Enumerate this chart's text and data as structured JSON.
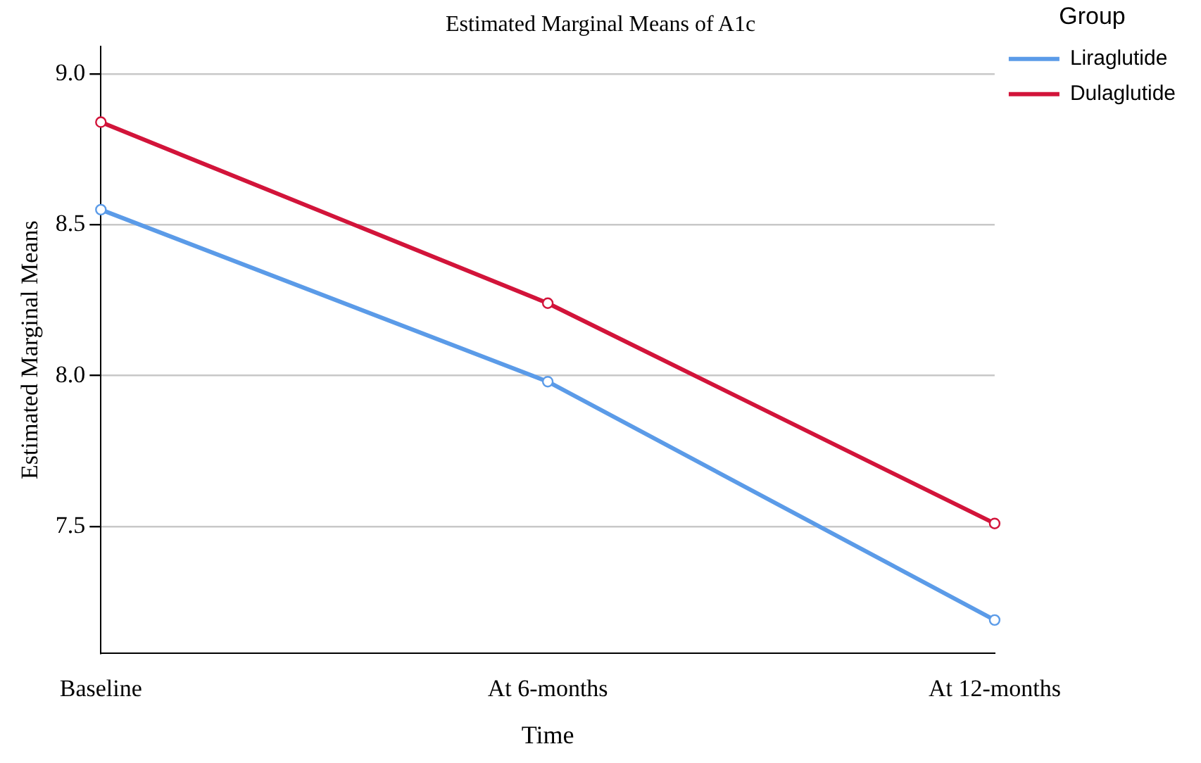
{
  "chart_data": {
    "type": "line",
    "title": "Estimated Marginal Means of A1c",
    "xlabel": "Time",
    "ylabel": "Estimated Marginal Means",
    "legend_title": "Group",
    "categories": [
      "Baseline",
      "At 6-months",
      "At 12-months"
    ],
    "series": [
      {
        "name": "Liraglutide",
        "color": "#5b9be8",
        "values": [
          8.55,
          7.98,
          7.19
        ]
      },
      {
        "name": "Dulaglutide",
        "color": "#d2143a",
        "values": [
          8.84,
          8.24,
          7.51
        ]
      }
    ],
    "ylim": [
      7.08,
      9.09
    ],
    "yticks": [
      {
        "value": 7.5,
        "label": "7.5"
      },
      {
        "value": 8,
        "label": "8.0"
      },
      {
        "value": 8.5,
        "label": "8.5"
      },
      {
        "value": 9,
        "label": "9.0"
      }
    ],
    "grid": "y",
    "legend": "top right",
    "marker": "circle",
    "line_style": "solid"
  }
}
